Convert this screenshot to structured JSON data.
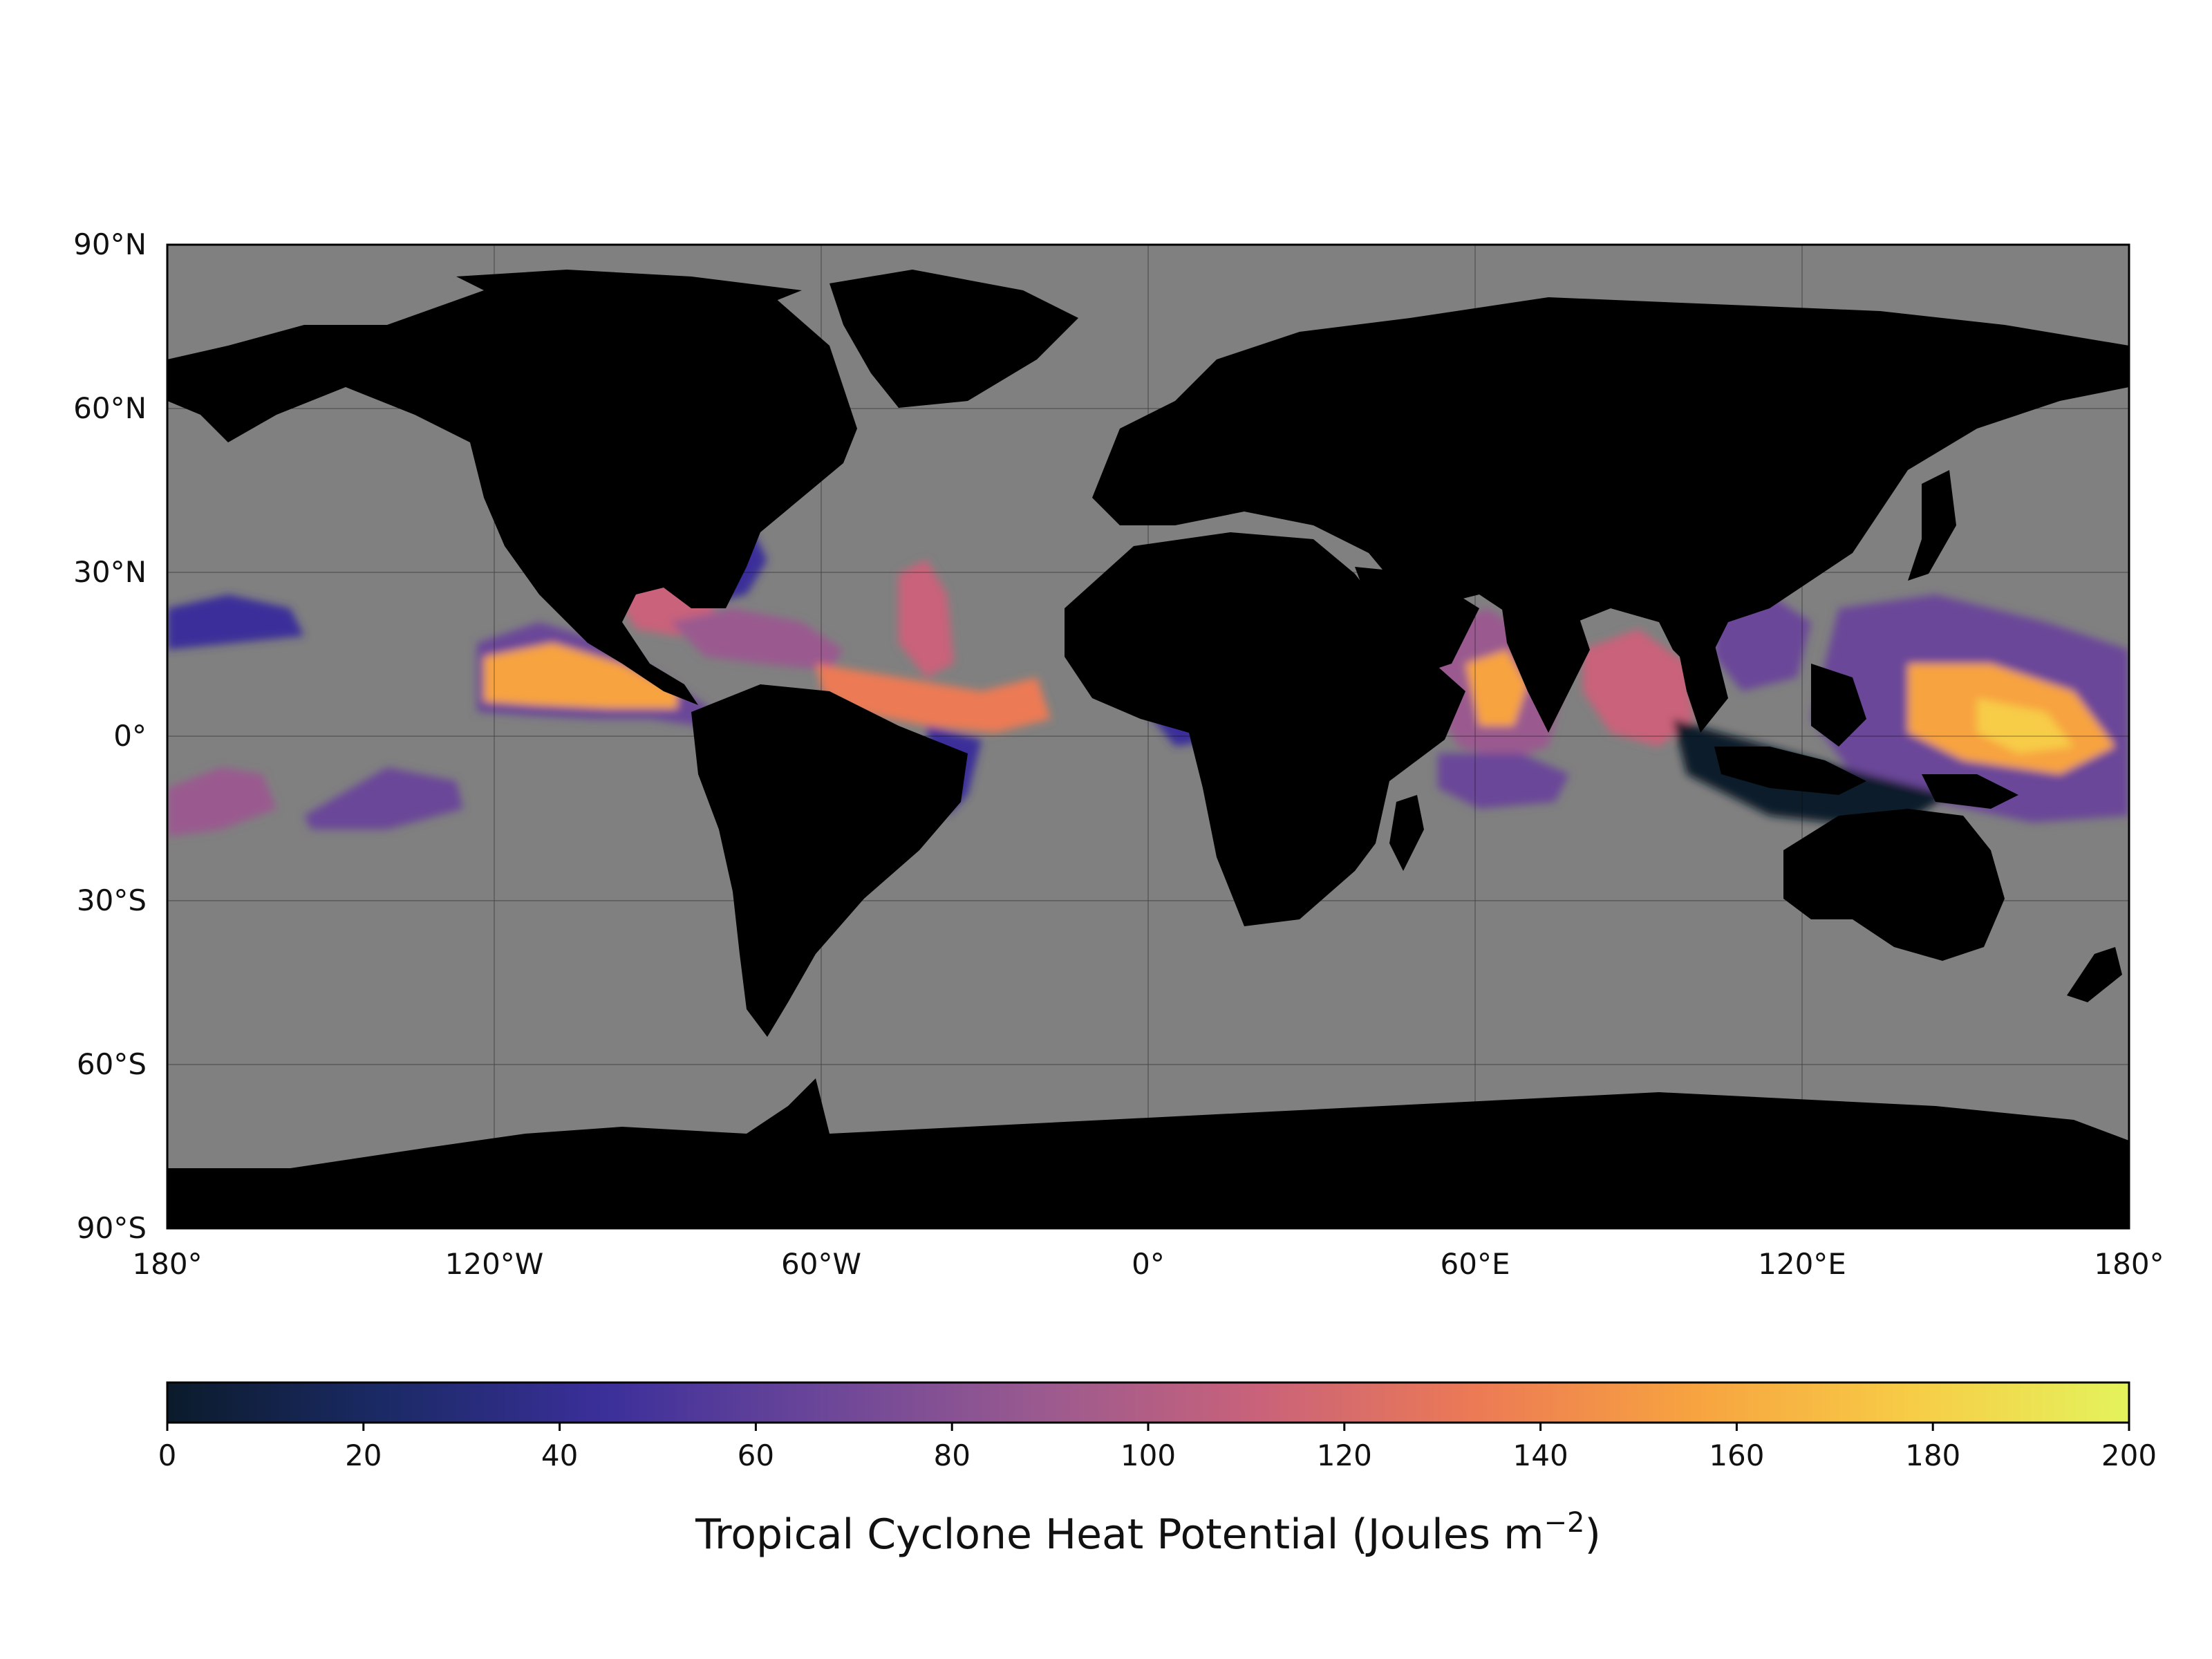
{
  "map": {
    "lat_ticks": [
      "90°N",
      "60°N",
      "30°N",
      "0°",
      "30°S",
      "60°S",
      "90°S"
    ],
    "lon_ticks": [
      "180°",
      "120°W",
      "60°W",
      "0°",
      "60°E",
      "120°E",
      "180°"
    ],
    "ocean_color": "#808080",
    "land_color": "#000000",
    "gridlines": true
  },
  "colorbar": {
    "label_main": "Tropical Cyclone Heat Potential (Joules m",
    "label_exp": "−2",
    "label_close": ")",
    "ticks": [
      "0",
      "20",
      "40",
      "60",
      "80",
      "100",
      "120",
      "140",
      "160",
      "180",
      "200"
    ],
    "range": [
      0,
      200
    ],
    "colormap_stops": [
      "#0b1b2b",
      "#1b2a66",
      "#3b2f9a",
      "#6b4699",
      "#9a5a8f",
      "#c9627a",
      "#ec7a55",
      "#f7a340",
      "#f7cc46",
      "#e4f35c"
    ]
  }
}
